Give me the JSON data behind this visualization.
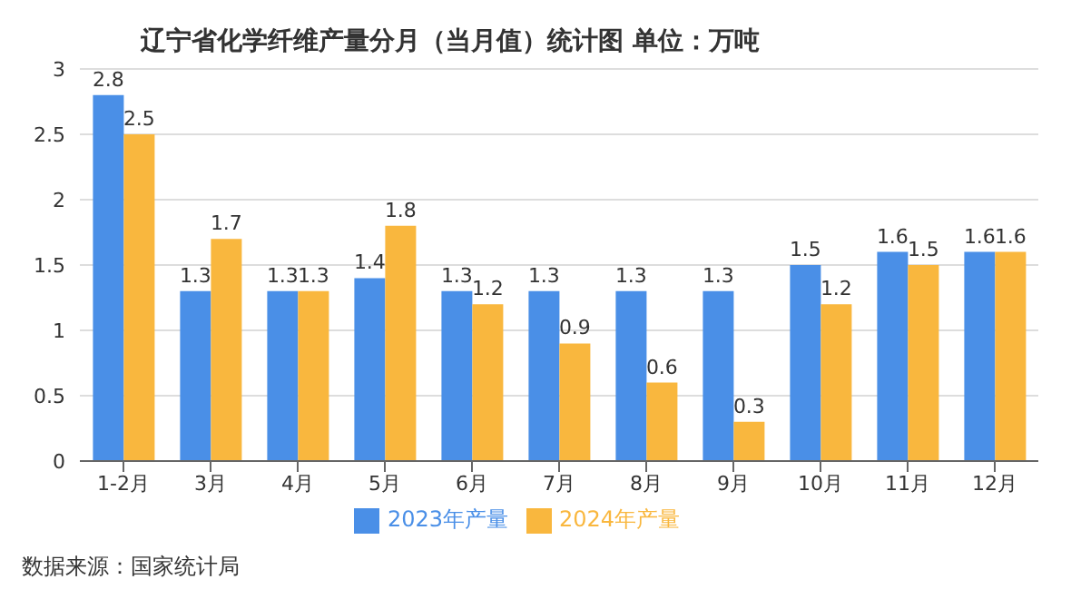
{
  "chart_data": {
    "type": "bar",
    "title": "辽宁省化学纤维产量分月（当月值）统计图 单位：万吨",
    "categories": [
      "1-2月",
      "3月",
      "4月",
      "5月",
      "6月",
      "7月",
      "8月",
      "9月",
      "10月",
      "11月",
      "12月"
    ],
    "series": [
      {
        "name": "2023年产量",
        "color": "#4a8fe7",
        "values": [
          2.8,
          1.3,
          1.3,
          1.4,
          1.3,
          1.3,
          1.3,
          1.3,
          1.5,
          1.6,
          1.6
        ]
      },
      {
        "name": "2024年产量",
        "color": "#f9b73e",
        "values": [
          2.5,
          1.7,
          1.3,
          1.8,
          1.2,
          0.9,
          0.6,
          0.3,
          1.2,
          1.5,
          1.6
        ]
      }
    ],
    "ylim": [
      0,
      3
    ],
    "yticks": [
      0,
      0.5,
      1,
      1.5,
      2,
      2.5,
      3
    ],
    "grid": "y",
    "legend": "bottom",
    "data_labels": true,
    "annotations": [
      "数据来源：国家统计局"
    ]
  }
}
